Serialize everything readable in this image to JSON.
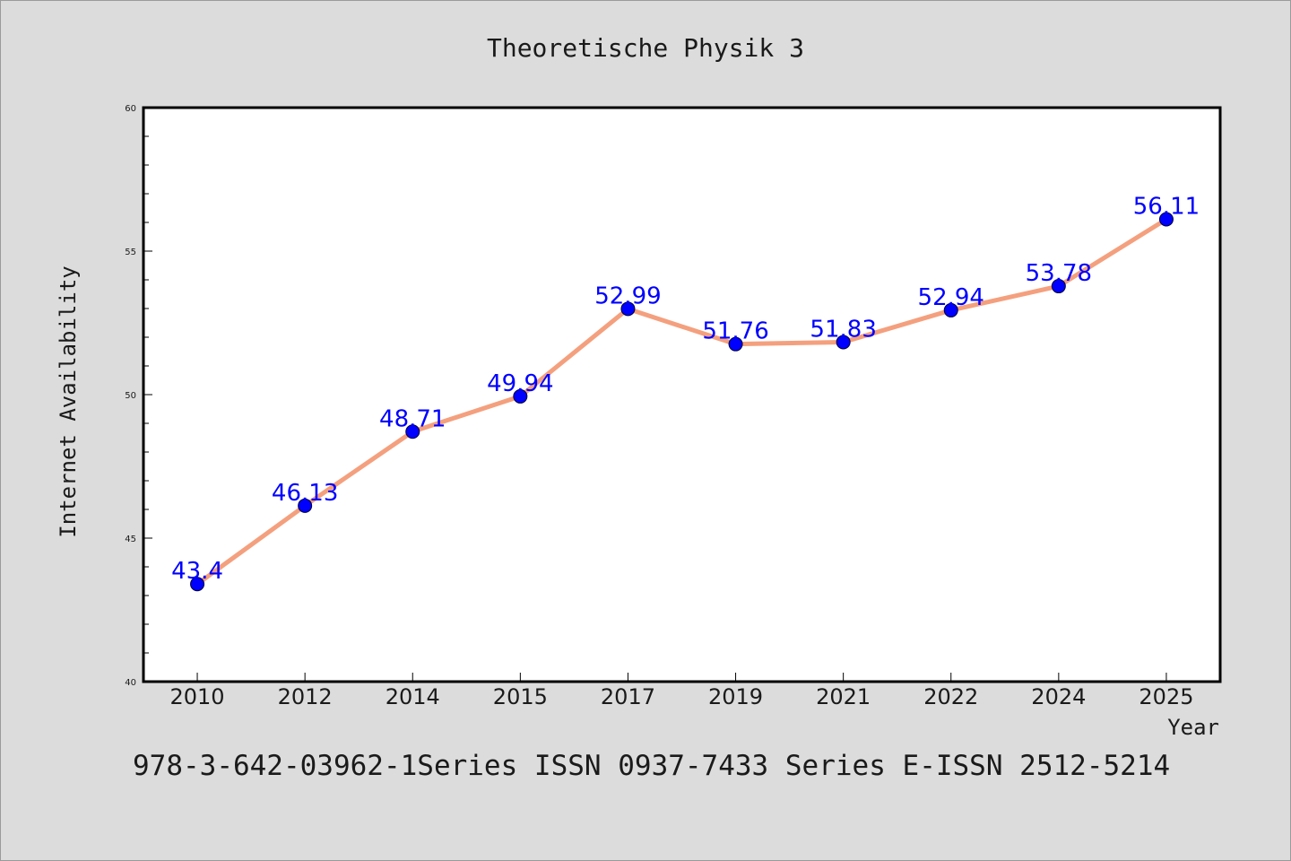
{
  "chart_data": {
    "type": "line",
    "title": "Theoretische Physik 3",
    "xlabel": "Year",
    "ylabel": "Internet Availability",
    "categories": [
      "2010",
      "2012",
      "2014",
      "2015",
      "2017",
      "2019",
      "2021",
      "2022",
      "2024",
      "2025"
    ],
    "series": [
      {
        "values": [
          43.4,
          46.13,
          48.71,
          49.94,
          52.99,
          51.76,
          51.83,
          52.94,
          53.78,
          56.11
        ],
        "labels": [
          "43.4",
          "46.13",
          "48.71",
          "49.94",
          "52.99",
          "51.76",
          "51.83",
          "52.94",
          "53.78",
          "56.11"
        ],
        "line_color": "#f4a07e",
        "marker_color": "#0000ff"
      }
    ],
    "ylim": [
      40,
      60
    ],
    "yticks": [
      "40",
      "45",
      "50",
      "55",
      "60"
    ],
    "grid": false,
    "legend": "none"
  },
  "footer_text": "978-3-642-03962-1Series ISSN 0937-7433 Series E-ISSN 2512-5214"
}
